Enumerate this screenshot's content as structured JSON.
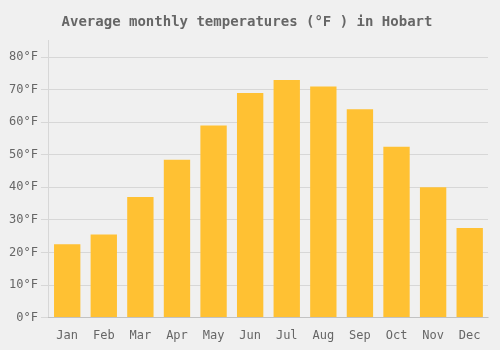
{
  "chart_data": {
    "type": "bar",
    "title": "Average monthly temperatures (°F ) in Hobart",
    "categories": [
      "Jan",
      "Feb",
      "Mar",
      "Apr",
      "May",
      "Jun",
      "Jul",
      "Aug",
      "Sep",
      "Oct",
      "Nov",
      "Dec"
    ],
    "values": [
      22.5,
      25.5,
      37.0,
      48.5,
      59.0,
      69.0,
      73.0,
      71.0,
      64.0,
      52.5,
      40.0,
      27.5
    ],
    "color": "#FFC133",
    "ylim": [
      0,
      85
    ],
    "yticks": [
      {
        "value": 0,
        "label": "0°F"
      },
      {
        "value": 10,
        "label": "10°F"
      },
      {
        "value": 20,
        "label": "20°F"
      },
      {
        "value": 30,
        "label": "30°F"
      },
      {
        "value": 40,
        "label": "40°F"
      },
      {
        "value": 50,
        "label": "50°F"
      },
      {
        "value": 60,
        "label": "60°F"
      },
      {
        "value": 70,
        "label": "70°F"
      },
      {
        "value": 80,
        "label": "80°F"
      }
    ],
    "grid": true
  }
}
